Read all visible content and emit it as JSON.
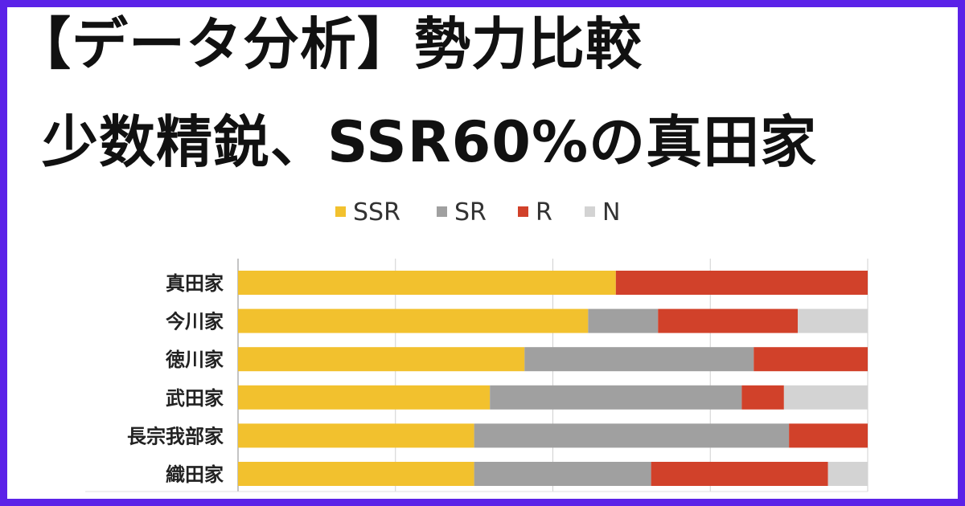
{
  "title_line1": "【データ分析】勢力比較",
  "title_line2": "少数精鋭、SSR60%の真田家",
  "colors": {
    "frame": "#5b22e8",
    "SSR": "#f2c12e",
    "SR": "#a0a0a0",
    "R": "#d1412a",
    "N": "#d3d3d3",
    "grid": "#d0d0d0",
    "text": "#222222"
  },
  "chart_data": {
    "type": "bar",
    "orientation": "horizontal",
    "stacked": true,
    "percent": true,
    "xlim": [
      0,
      100
    ],
    "grid": true,
    "legend": {
      "position": "top",
      "entries": [
        "SSR",
        "SR",
        "R",
        "N"
      ]
    },
    "categories": [
      "真田家",
      "今川家",
      "徳川家",
      "武田家",
      "長宗我部家",
      "織田家"
    ],
    "series": [
      {
        "name": "SSR",
        "values": [
          60,
          55.6,
          45.5,
          40,
          37.5,
          37.5
        ]
      },
      {
        "name": "SR",
        "values": [
          0,
          11.1,
          36.4,
          40,
          50,
          28.1
        ]
      },
      {
        "name": "R",
        "values": [
          40,
          22.2,
          18.1,
          6.7,
          12.5,
          28.1
        ]
      },
      {
        "name": "N",
        "values": [
          0,
          11.1,
          0,
          13.3,
          0,
          6.3
        ]
      }
    ]
  }
}
